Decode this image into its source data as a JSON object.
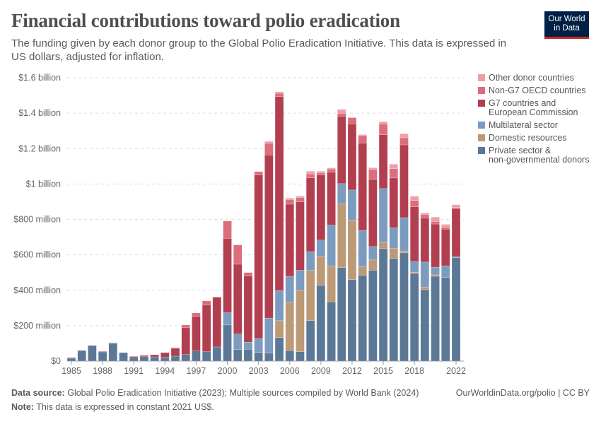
{
  "header": {
    "title": "Financial contributions toward polio eradication",
    "subtitle": "The funding given by each donor group to the Global Polio Eradication Initiative. This data is expressed in US dollars, adjusted for inflation.",
    "logo_line1": "Our World",
    "logo_line2": "in Data"
  },
  "footer": {
    "source_label": "Data source:",
    "source_text": "Global Polio Eradication Initiative (2023); Multiple sources compiled by World Bank (2024)",
    "note_label": "Note:",
    "note_text": "This data is expressed in constant 2021 US$.",
    "credit": "OurWorldinData.org/polio | CC BY"
  },
  "chart_data": {
    "type": "bar",
    "stacked": true,
    "title": "Financial contributions toward polio eradication",
    "unit": "US dollars (millions, constant 2021 US$)",
    "ylim": [
      0,
      1600
    ],
    "yticks": [
      0,
      200,
      400,
      600,
      800,
      1000,
      1200,
      1400,
      1600
    ],
    "ytick_labels": [
      "$0",
      "$200 million",
      "$400 million",
      "$600 million",
      "$800 million",
      "$1 billion",
      "$1.2 billion",
      "$1.4 billion",
      "$1.6 billion"
    ],
    "xtick_labels": [
      "1985",
      "1988",
      "1991",
      "1994",
      "1997",
      "2000",
      "2003",
      "2006",
      "2009",
      "2012",
      "2015",
      "2018",
      "2022"
    ],
    "grid": "horizontal dashed",
    "legend_position": "right",
    "categories": [
      1985,
      1986,
      1987,
      1988,
      1989,
      1990,
      1991,
      1992,
      1993,
      1994,
      1995,
      1996,
      1997,
      1998,
      1999,
      2000,
      2001,
      2002,
      2003,
      2004,
      2005,
      2006,
      2007,
      2008,
      2009,
      2010,
      2011,
      2012,
      2013,
      2014,
      2015,
      2016,
      2017,
      2018,
      2019,
      2020,
      2021,
      2022
    ],
    "series": [
      {
        "name": "Private sector & non-governmental donors",
        "legend_lines": [
          "Private sector &",
          "non-governmental donors"
        ],
        "color": "#5b7897",
        "values": [
          16,
          60,
          88,
          52,
          100,
          48,
          20,
          25,
          24,
          22,
          28,
          37,
          57,
          53,
          80,
          204,
          65,
          67,
          49,
          45,
          133,
          59,
          53,
          229,
          428,
          335,
          528,
          460,
          485,
          513,
          635,
          580,
          611,
          495,
          403,
          479,
          472,
          584
        ]
      },
      {
        "name": "Domestic resources",
        "legend_lines": [
          "Domestic resources"
        ],
        "color": "#bc9a76",
        "values": [
          0,
          0,
          0,
          0,
          0,
          0,
          0,
          0,
          0,
          0,
          0,
          0,
          0,
          0,
          0,
          0,
          0,
          0,
          0,
          0,
          95,
          275,
          346,
          283,
          163,
          203,
          360,
          337,
          49,
          58,
          35,
          58,
          11,
          7,
          15,
          8,
          0,
          0
        ]
      },
      {
        "name": "Multilateral sector",
        "legend_lines": [
          "Multilateral sector"
        ],
        "color": "#7b9bbf",
        "values": [
          0,
          0,
          0,
          0,
          4,
          0,
          0,
          0,
          0,
          0,
          0,
          0,
          0,
          0,
          0,
          69,
          88,
          40,
          79,
          198,
          171,
          145,
          114,
          106,
          92,
          230,
          114,
          169,
          204,
          76,
          304,
          115,
          188,
          61,
          141,
          43,
          66,
          5
        ]
      },
      {
        "name": "G7 countries and European Commission",
        "legend_lines": [
          "G7 countries and",
          "European Commission"
        ],
        "color": "#b13f50",
        "values": [
          4,
          0,
          0,
          0,
          0,
          0,
          6,
          7,
          12,
          26,
          44,
          151,
          196,
          264,
          280,
          420,
          394,
          374,
          923,
          921,
          1095,
          407,
          386,
          417,
          368,
          299,
          381,
          374,
          493,
          379,
          304,
          281,
          411,
          308,
          249,
          244,
          207,
          271
        ]
      },
      {
        "name": "Non-G7 OECD countries",
        "legend_lines": [
          "Non-G7 OECD countries"
        ],
        "color": "#dc6e7c",
        "values": [
          0,
          0,
          0,
          4,
          0,
          0,
          2,
          0,
          0,
          0,
          4,
          16,
          19,
          23,
          3,
          98,
          109,
          19,
          19,
          66,
          18,
          26,
          25,
          22,
          12,
          18,
          16,
          34,
          42,
          56,
          61,
          52,
          40,
          36,
          20,
          14,
          10,
          7
        ]
      },
      {
        "name": "Other donor countries",
        "legend_lines": [
          "Other donor countries"
        ],
        "color": "#eda0aa",
        "values": [
          0,
          0,
          0,
          0,
          0,
          0,
          0,
          0,
          0,
          0,
          0,
          0,
          0,
          0,
          0,
          0,
          0,
          0,
          0,
          11,
          9,
          8,
          8,
          15,
          9,
          6,
          22,
          3,
          6,
          10,
          13,
          26,
          23,
          24,
          9,
          25,
          17,
          16
        ]
      }
    ]
  }
}
